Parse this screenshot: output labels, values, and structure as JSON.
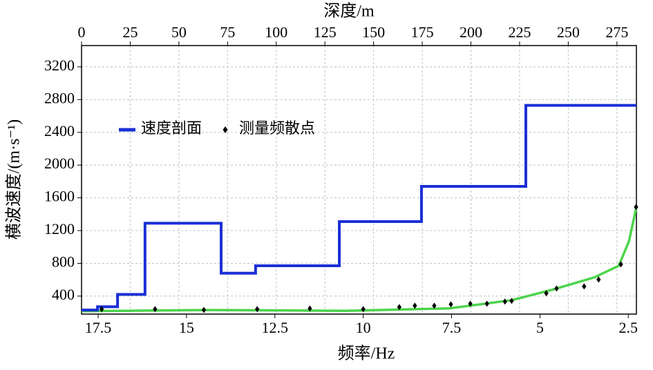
{
  "chart_data": {
    "type": "line",
    "xlabel": "频率/Hz",
    "x2label": "深度/m",
    "ylabel": "横波速度/(m·s⁻¹)",
    "xlim": [
      17.97,
      2.27
    ],
    "xticks": [
      17.5,
      15,
      12.5,
      10,
      7.5,
      5,
      2.5
    ],
    "x2lim": [
      0,
      285
    ],
    "x2ticks": [
      0,
      25,
      50,
      75,
      100,
      125,
      150,
      175,
      200,
      225,
      250,
      275
    ],
    "ylim": [
      180,
      3460
    ],
    "yticks": [
      400,
      800,
      1200,
      1600,
      2000,
      2400,
      2800,
      3200
    ],
    "grid": true,
    "legend": "upper left",
    "series": [
      {
        "name": "速度剖面",
        "type": "line",
        "axis": "x2",
        "color": "#1a2fd6",
        "x": [
          0,
          8.2,
          8.2,
          18.5,
          18.5,
          32.6,
          32.6,
          71.7,
          71.7,
          89.4,
          89.4,
          132.4,
          132.4,
          174.6,
          174.6,
          228.2,
          228.2,
          285
        ],
        "values": [
          230,
          230,
          270,
          270,
          420,
          420,
          1290,
          1290,
          680,
          680,
          770,
          770,
          1310,
          1310,
          1740,
          1740,
          2730,
          2730
        ]
      },
      {
        "name": "测量频散点",
        "type": "scatter",
        "color": "#000000",
        "x": [
          17.4,
          15.89,
          14.51,
          13.0,
          11.51,
          10.0,
          8.98,
          8.54,
          7.99,
          7.52,
          6.97,
          6.5,
          5.99,
          5.8,
          4.82,
          4.53,
          3.75,
          3.34,
          2.71,
          2.28
        ],
        "values": [
          240,
          240,
          231,
          240,
          248,
          240,
          265,
          282,
          282,
          299,
          307,
          307,
          333,
          341,
          434,
          493,
          518,
          602,
          788,
          1488
        ]
      },
      {
        "type": "line",
        "color": "#4cd44c",
        "x": [
          17.97,
          14.41,
          10.5,
          7.56,
          5.8,
          4.63,
          3.45,
          2.77,
          2.48,
          2.27
        ],
        "values": [
          215,
          230,
          220,
          250,
          350,
          480,
          630,
          770,
          1070,
          1490
        ]
      }
    ]
  }
}
